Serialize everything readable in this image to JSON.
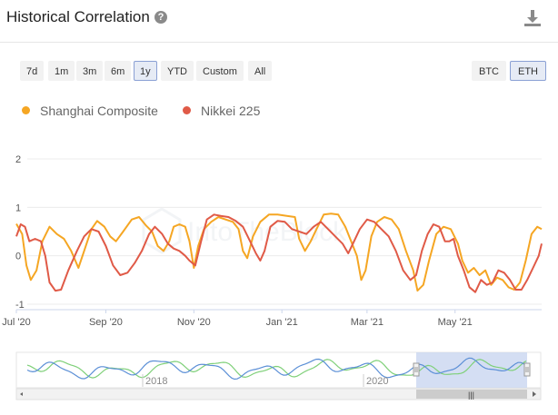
{
  "header": {
    "title": "Historical Correlation",
    "help_icon": "question-icon",
    "download_icon": "download-icon"
  },
  "ranges": [
    "7d",
    "1m",
    "3m",
    "6m",
    "1y",
    "YTD",
    "Custom",
    "All"
  ],
  "active_range": "1y",
  "assets": [
    "BTC",
    "ETH"
  ],
  "active_asset": "ETH",
  "colors": {
    "shanghai": "#f5a623",
    "nikkei": "#e05a47",
    "nav_green": "#7fd079",
    "nav_blue": "#5b8fd6",
    "selection": "#c9d6f0",
    "active_border": "#8aa0d4"
  },
  "navigator": {
    "year_labels": [
      "2018",
      "2020"
    ],
    "scrollbar_grip": "|||"
  },
  "chart_data": {
    "type": "line",
    "title": "",
    "ylim": [
      -1,
      2
    ],
    "yticks": [
      2,
      1,
      0,
      -1
    ],
    "xticks": [
      "Jul '20",
      "Sep '20",
      "Nov '20",
      "Jan '21",
      "Mar '21",
      "May '21"
    ],
    "x_range": [
      "2020-07-01",
      "2021-06-30"
    ],
    "legend_position": "top-left",
    "grid": true,
    "watermark": "IntoTheBlock",
    "series": [
      {
        "name": "Shanghai Composite",
        "color": "#f5a623",
        "points": [
          [
            "2020-07-01",
            0.66
          ],
          [
            "2020-07-05",
            0.45
          ],
          [
            "2020-07-08",
            -0.2
          ],
          [
            "2020-07-11",
            -0.5
          ],
          [
            "2020-07-15",
            -0.3
          ],
          [
            "2020-07-19",
            0.3
          ],
          [
            "2020-07-24",
            0.6
          ],
          [
            "2020-07-29",
            0.45
          ],
          [
            "2020-08-03",
            0.35
          ],
          [
            "2020-08-08",
            0.1
          ],
          [
            "2020-08-13",
            -0.25
          ],
          [
            "2020-08-17",
            0.1
          ],
          [
            "2020-08-22",
            0.55
          ],
          [
            "2020-08-26",
            0.72
          ],
          [
            "2020-08-31",
            0.6
          ],
          [
            "2020-09-04",
            0.4
          ],
          [
            "2020-09-08",
            0.3
          ],
          [
            "2020-09-13",
            0.5
          ],
          [
            "2020-09-19",
            0.75
          ],
          [
            "2020-09-24",
            0.8
          ],
          [
            "2020-09-29",
            0.62
          ],
          [
            "2020-10-03",
            0.5
          ],
          [
            "2020-10-07",
            0.2
          ],
          [
            "2020-10-11",
            0.1
          ],
          [
            "2020-10-15",
            0.3
          ],
          [
            "2020-10-18",
            0.6
          ],
          [
            "2020-10-22",
            0.65
          ],
          [
            "2020-10-26",
            0.6
          ],
          [
            "2020-10-29",
            0.3
          ],
          [
            "2020-11-01",
            -0.25
          ],
          [
            "2020-11-04",
            0.2
          ],
          [
            "2020-11-08",
            0.55
          ],
          [
            "2020-11-13",
            0.7
          ],
          [
            "2020-11-18",
            0.8
          ],
          [
            "2020-11-23",
            0.75
          ],
          [
            "2020-11-28",
            0.7
          ],
          [
            "2020-12-02",
            0.55
          ],
          [
            "2020-12-05",
            0.1
          ],
          [
            "2020-12-08",
            -0.05
          ],
          [
            "2020-12-12",
            0.4
          ],
          [
            "2020-12-17",
            0.7
          ],
          [
            "2020-12-23",
            0.85
          ],
          [
            "2020-12-29",
            0.85
          ],
          [
            "2021-01-05",
            0.82
          ],
          [
            "2021-01-10",
            0.8
          ],
          [
            "2021-01-13",
            0.35
          ],
          [
            "2021-01-17",
            0.1
          ],
          [
            "2021-01-21",
            0.3
          ],
          [
            "2021-01-25",
            0.55
          ],
          [
            "2021-01-30",
            0.85
          ],
          [
            "2021-02-04",
            0.87
          ],
          [
            "2021-02-09",
            0.85
          ],
          [
            "2021-02-14",
            0.6
          ],
          [
            "2021-02-18",
            0.3
          ],
          [
            "2021-02-22",
            0.0
          ],
          [
            "2021-02-25",
            -0.5
          ],
          [
            "2021-02-28",
            -0.3
          ],
          [
            "2021-03-04",
            0.4
          ],
          [
            "2021-03-08",
            0.7
          ],
          [
            "2021-03-13",
            0.8
          ],
          [
            "2021-03-18",
            0.75
          ],
          [
            "2021-03-23",
            0.55
          ],
          [
            "2021-03-28",
            0.1
          ],
          [
            "2021-04-02",
            -0.3
          ],
          [
            "2021-04-05",
            -0.72
          ],
          [
            "2021-04-09",
            -0.6
          ],
          [
            "2021-04-13",
            -0.1
          ],
          [
            "2021-04-18",
            0.45
          ],
          [
            "2021-04-23",
            0.6
          ],
          [
            "2021-04-28",
            0.55
          ],
          [
            "2021-05-03",
            0.25
          ],
          [
            "2021-05-06",
            -0.1
          ],
          [
            "2021-05-10",
            -0.35
          ],
          [
            "2021-05-14",
            -0.25
          ],
          [
            "2021-05-18",
            -0.4
          ],
          [
            "2021-05-22",
            -0.3
          ],
          [
            "2021-05-26",
            -0.6
          ],
          [
            "2021-05-30",
            -0.45
          ],
          [
            "2021-06-03",
            -0.5
          ],
          [
            "2021-06-07",
            -0.65
          ],
          [
            "2021-06-11",
            -0.7
          ],
          [
            "2021-06-15",
            -0.55
          ],
          [
            "2021-06-19",
            -0.1
          ],
          [
            "2021-06-23",
            0.45
          ],
          [
            "2021-06-27",
            0.6
          ],
          [
            "2021-06-30",
            0.55
          ]
        ]
      },
      {
        "name": "Nikkei 225",
        "color": "#e05a47",
        "points": [
          [
            "2020-07-01",
            0.4
          ],
          [
            "2020-07-04",
            0.65
          ],
          [
            "2020-07-07",
            0.6
          ],
          [
            "2020-07-10",
            0.3
          ],
          [
            "2020-07-14",
            0.35
          ],
          [
            "2020-07-18",
            0.3
          ],
          [
            "2020-07-21",
            0.0
          ],
          [
            "2020-07-24",
            -0.55
          ],
          [
            "2020-07-28",
            -0.72
          ],
          [
            "2020-08-01",
            -0.7
          ],
          [
            "2020-08-06",
            -0.3
          ],
          [
            "2020-08-12",
            0.1
          ],
          [
            "2020-08-17",
            0.4
          ],
          [
            "2020-08-22",
            0.55
          ],
          [
            "2020-08-27",
            0.5
          ],
          [
            "2020-09-01",
            0.2
          ],
          [
            "2020-09-06",
            -0.2
          ],
          [
            "2020-09-11",
            -0.4
          ],
          [
            "2020-09-16",
            -0.35
          ],
          [
            "2020-09-21",
            -0.15
          ],
          [
            "2020-09-26",
            0.1
          ],
          [
            "2020-10-01",
            0.45
          ],
          [
            "2020-10-05",
            0.6
          ],
          [
            "2020-10-10",
            0.45
          ],
          [
            "2020-10-14",
            0.25
          ],
          [
            "2020-10-18",
            0.15
          ],
          [
            "2020-10-22",
            0.1
          ],
          [
            "2020-10-26",
            0.0
          ],
          [
            "2020-10-29",
            -0.1
          ],
          [
            "2020-11-02",
            -0.2
          ],
          [
            "2020-11-06",
            0.3
          ],
          [
            "2020-11-10",
            0.75
          ],
          [
            "2020-11-15",
            0.85
          ],
          [
            "2020-11-20",
            0.82
          ],
          [
            "2020-11-25",
            0.8
          ],
          [
            "2020-11-30",
            0.72
          ],
          [
            "2020-12-05",
            0.6
          ],
          [
            "2020-12-10",
            0.3
          ],
          [
            "2020-12-14",
            0.05
          ],
          [
            "2020-12-17",
            -0.1
          ],
          [
            "2020-12-20",
            0.1
          ],
          [
            "2020-12-24",
            0.6
          ],
          [
            "2020-12-29",
            0.72
          ],
          [
            "2021-01-03",
            0.7
          ],
          [
            "2021-01-08",
            0.55
          ],
          [
            "2021-01-13",
            0.5
          ],
          [
            "2021-01-18",
            0.45
          ],
          [
            "2021-01-23",
            0.6
          ],
          [
            "2021-01-28",
            0.7
          ],
          [
            "2021-02-02",
            0.55
          ],
          [
            "2021-02-07",
            0.4
          ],
          [
            "2021-02-12",
            0.25
          ],
          [
            "2021-02-16",
            0.05
          ],
          [
            "2021-02-20",
            0.3
          ],
          [
            "2021-02-24",
            0.55
          ],
          [
            "2021-03-01",
            0.75
          ],
          [
            "2021-03-06",
            0.7
          ],
          [
            "2021-03-11",
            0.55
          ],
          [
            "2021-03-16",
            0.4
          ],
          [
            "2021-03-21",
            0.1
          ],
          [
            "2021-03-26",
            -0.3
          ],
          [
            "2021-03-31",
            -0.5
          ],
          [
            "2021-04-04",
            -0.4
          ],
          [
            "2021-04-08",
            0.1
          ],
          [
            "2021-04-12",
            0.45
          ],
          [
            "2021-04-16",
            0.65
          ],
          [
            "2021-04-20",
            0.6
          ],
          [
            "2021-04-24",
            0.3
          ],
          [
            "2021-04-27",
            0.3
          ],
          [
            "2021-04-30",
            0.35
          ],
          [
            "2021-05-03",
            0.0
          ],
          [
            "2021-05-07",
            -0.3
          ],
          [
            "2021-05-11",
            -0.65
          ],
          [
            "2021-05-15",
            -0.75
          ],
          [
            "2021-05-19",
            -0.5
          ],
          [
            "2021-05-23",
            -0.6
          ],
          [
            "2021-05-27",
            -0.55
          ],
          [
            "2021-05-31",
            -0.3
          ],
          [
            "2021-06-04",
            -0.35
          ],
          [
            "2021-06-08",
            -0.5
          ],
          [
            "2021-06-12",
            -0.7
          ],
          [
            "2021-06-16",
            -0.7
          ],
          [
            "2021-06-20",
            -0.5
          ],
          [
            "2021-06-24",
            -0.25
          ],
          [
            "2021-06-28",
            0.0
          ],
          [
            "2021-06-30",
            0.25
          ]
        ]
      }
    ]
  }
}
